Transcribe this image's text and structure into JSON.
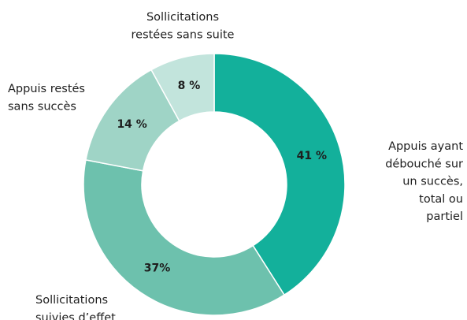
{
  "chart_data": {
    "type": "donut",
    "categories": [
      "Appuis ayant\ndébouché sur\nun succès,\ntotal ou\npartiel",
      "Sollicitations\nsuivies d’effet",
      "Appuis restés\nsans succès",
      "Sollicitations\nrestées sans suite"
    ],
    "values": [
      41,
      37,
      14,
      8
    ],
    "value_labels": [
      "41 %",
      "37%",
      "14 %",
      "8 %"
    ],
    "colors": [
      "#13b09b",
      "#6dc1ad",
      "#9fd4c6",
      "#c2e4dc"
    ],
    "value_label_colors": [
      "#ffffff",
      "#ffffff",
      "#ffffff",
      "#13b09b"
    ]
  }
}
